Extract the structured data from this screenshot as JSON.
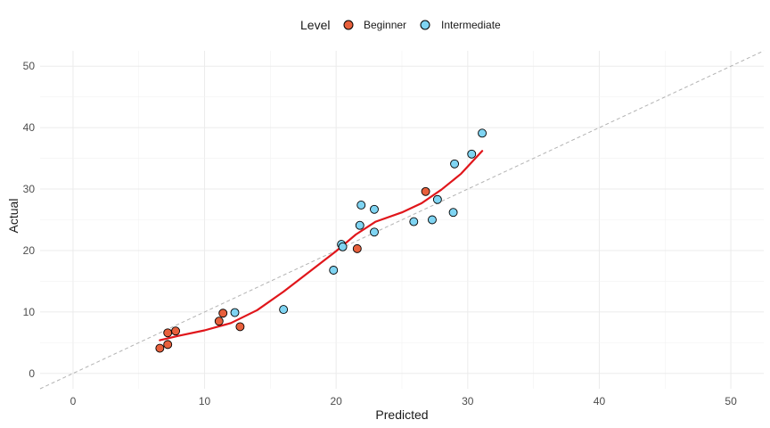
{
  "chart_data": {
    "type": "scatter",
    "xlabel": "Predicted",
    "ylabel": "Actual",
    "xlim": [
      -2.5,
      52.5
    ],
    "ylim": [
      -2.5,
      52.5
    ],
    "x_ticks": [
      0,
      10,
      20,
      30,
      40,
      50
    ],
    "y_ticks": [
      0,
      10,
      20,
      30,
      40,
      50
    ],
    "x_tick_labels": [
      "0",
      "10",
      "20",
      "30",
      "40",
      "50"
    ],
    "y_tick_labels": [
      "0",
      "10",
      "20",
      "30",
      "40",
      "50"
    ],
    "grid": true,
    "legend": {
      "title": "Level",
      "position": "top"
    },
    "series": [
      {
        "name": "Beginner",
        "color": "#E8603C",
        "points": [
          {
            "x": 6.6,
            "y": 4.1
          },
          {
            "x": 7.2,
            "y": 4.7
          },
          {
            "x": 7.2,
            "y": 6.6
          },
          {
            "x": 7.8,
            "y": 6.9
          },
          {
            "x": 11.1,
            "y": 8.5
          },
          {
            "x": 11.4,
            "y": 9.8
          },
          {
            "x": 12.7,
            "y": 7.6
          },
          {
            "x": 21.6,
            "y": 20.3
          },
          {
            "x": 26.8,
            "y": 29.6
          }
        ]
      },
      {
        "name": "Intermediate",
        "color": "#7FD4F2",
        "points": [
          {
            "x": 12.3,
            "y": 9.9
          },
          {
            "x": 16.0,
            "y": 10.4
          },
          {
            "x": 19.8,
            "y": 16.8
          },
          {
            "x": 20.4,
            "y": 21.0
          },
          {
            "x": 20.5,
            "y": 20.6
          },
          {
            "x": 21.8,
            "y": 24.1
          },
          {
            "x": 21.9,
            "y": 27.4
          },
          {
            "x": 22.9,
            "y": 23.0
          },
          {
            "x": 22.9,
            "y": 26.7
          },
          {
            "x": 25.9,
            "y": 24.7
          },
          {
            "x": 27.3,
            "y": 25.0
          },
          {
            "x": 27.7,
            "y": 28.3
          },
          {
            "x": 28.9,
            "y": 26.2
          },
          {
            "x": 29.0,
            "y": 34.1
          },
          {
            "x": 30.3,
            "y": 35.7
          },
          {
            "x": 31.1,
            "y": 39.1
          }
        ]
      }
    ],
    "reference_line": {
      "type": "identity",
      "x": [
        -2.5,
        52.5
      ],
      "y": [
        -2.5,
        52.5
      ],
      "color": "#b3b3b3",
      "style": "dashed"
    },
    "smooth_line": {
      "color": "#E0161B",
      "points": [
        {
          "x": 6.6,
          "y": 5.4
        },
        {
          "x": 8.0,
          "y": 6.1
        },
        {
          "x": 10.0,
          "y": 7.0
        },
        {
          "x": 12.0,
          "y": 8.2
        },
        {
          "x": 14.0,
          "y": 10.3
        },
        {
          "x": 16.0,
          "y": 13.3
        },
        {
          "x": 18.0,
          "y": 16.6
        },
        {
          "x": 20.0,
          "y": 19.9
        },
        {
          "x": 21.5,
          "y": 22.6
        },
        {
          "x": 23.0,
          "y": 24.7
        },
        {
          "x": 25.0,
          "y": 26.2
        },
        {
          "x": 26.5,
          "y": 27.7
        },
        {
          "x": 28.0,
          "y": 29.9
        },
        {
          "x": 29.5,
          "y": 32.5
        },
        {
          "x": 31.1,
          "y": 36.2
        }
      ]
    }
  }
}
